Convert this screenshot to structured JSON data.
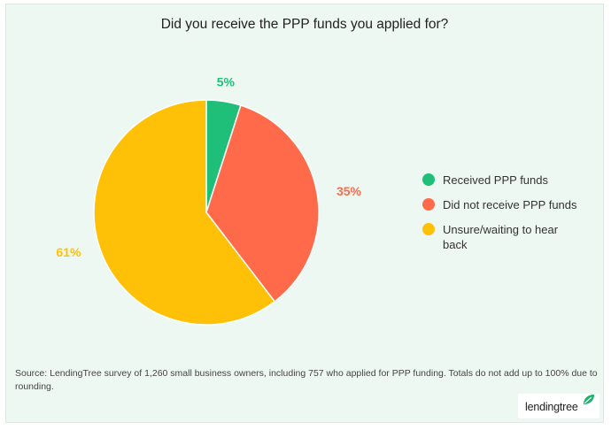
{
  "title": "Did you receive the PPP funds you applied for?",
  "source": "Source: LendingTree survey of 1,260 small business owners, including 757 who applied for PPP funding. Totals do not add up to 100% due to rounding.",
  "logo": "lendingtree",
  "chart_data": {
    "type": "pie",
    "title": "Did you receive the PPP funds you applied for?",
    "slices": [
      {
        "label": "Received PPP funds",
        "value": 5,
        "display": "5%",
        "color": "#1fbf7a"
      },
      {
        "label": "Did not receive PPP funds",
        "value": 35,
        "display": "35%",
        "color": "#ff6b4a"
      },
      {
        "label": "Unsure/waiting to hear back",
        "value": 61,
        "display": "61%",
        "color": "#ffc107"
      }
    ],
    "legend": "right"
  }
}
